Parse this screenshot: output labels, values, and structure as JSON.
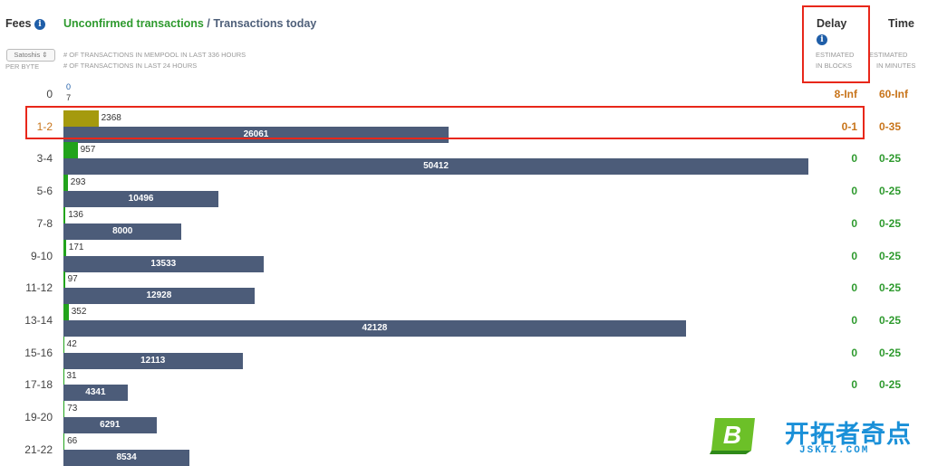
{
  "header": {
    "fees_label": "Fees",
    "info_glyph": "i",
    "title_unconfirmed": "Unconfirmed transactions",
    "title_separator": " / ",
    "title_today": "Transactions today",
    "unit_select": "Satoshis ⇕",
    "per_byte": "PER BYTE",
    "legend_mempool": "# OF TRANSACTIONS IN MEMPOOL IN LAST 336 HOURS",
    "legend_24h": "# OF TRANSACTIONS IN LAST 24 HOURS",
    "delay_label": "Delay",
    "delay_sub1": "ESTIMATED",
    "delay_sub2": "IN BLOCKS",
    "time_label": "Time",
    "time_sub1": "ESTIMATED",
    "time_sub2": "IN MINUTES"
  },
  "colors": {
    "mempool_bar": "#22a31c",
    "highlight_bar": "#a59a0e",
    "today_bar": "#4c5c79",
    "green_text": "#2e9a2e",
    "orange_text": "#c8741a",
    "annotation": "#e8271a"
  },
  "chart_data": {
    "type": "bar",
    "orientation": "horizontal",
    "categories": [
      "0",
      "1-2",
      "3-4",
      "5-6",
      "7-8",
      "9-10",
      "11-12",
      "13-14",
      "15-16",
      "17-18",
      "19-20",
      "21-22"
    ],
    "series": [
      {
        "name": "# OF TRANSACTIONS IN MEMPOOL IN LAST 336 HOURS",
        "values": [
          0,
          2368,
          957,
          293,
          136,
          171,
          97,
          352,
          42,
          31,
          73,
          66
        ]
      },
      {
        "name": "# OF TRANSACTIONS IN LAST 24 HOURS",
        "values": [
          7,
          26061,
          50412,
          10496,
          8000,
          13533,
          12928,
          42128,
          12113,
          4341,
          6291,
          8534
        ]
      }
    ],
    "delay_blocks": [
      "8-Inf",
      "0-1",
      "0",
      "0",
      "0",
      "0",
      "0",
      "0",
      "0",
      "0",
      "",
      ""
    ],
    "time_minutes": [
      "60-Inf",
      "0-35",
      "0-25",
      "0-25",
      "0-25",
      "0-25",
      "0-25",
      "0-25",
      "0-25",
      "0-25",
      "",
      ""
    ],
    "highlighted_row": "1-2"
  },
  "watermark": {
    "logo_letter": "B",
    "chinese_text": "开拓者奇点",
    "site": "JSKTZ.COM"
  }
}
